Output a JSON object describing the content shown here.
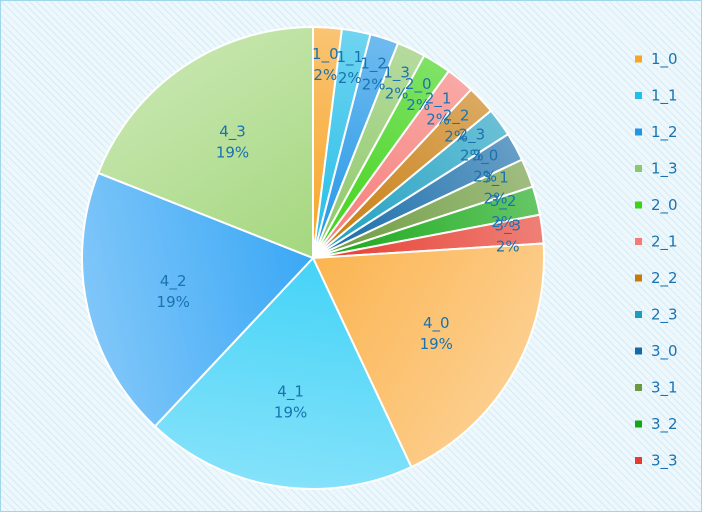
{
  "chart_data": {
    "type": "pie",
    "legend_position": "right",
    "slices": [
      {
        "label": "1_0",
        "value": 2,
        "percent_label": "2%",
        "color": "#f8a427"
      },
      {
        "label": "1_1",
        "value": 2,
        "percent_label": "2%",
        "color": "#22bde8"
      },
      {
        "label": "1_2",
        "value": 2,
        "percent_label": "2%",
        "color": "#2196e6"
      },
      {
        "label": "1_3",
        "value": 2,
        "percent_label": "2%",
        "color": "#8dc868"
      },
      {
        "label": "2_0",
        "value": 2,
        "percent_label": "2%",
        "color": "#3bd314"
      },
      {
        "label": "2_1",
        "value": 2,
        "percent_label": "2%",
        "color": "#f57a76"
      },
      {
        "label": "2_2",
        "value": 2,
        "percent_label": "2%",
        "color": "#c77a0c"
      },
      {
        "label": "2_3",
        "value": 2,
        "percent_label": "2%",
        "color": "#1a9ec0"
      },
      {
        "label": "3_0",
        "value": 2,
        "percent_label": "2%",
        "color": "#1469a8"
      },
      {
        "label": "3_1",
        "value": 2,
        "percent_label": "2%",
        "color": "#6b9a3c"
      },
      {
        "label": "3_2",
        "value": 2,
        "percent_label": "2%",
        "color": "#14a714"
      },
      {
        "label": "3_3",
        "value": 2,
        "percent_label": "2%",
        "color": "#e63b2e"
      },
      {
        "label": "4_0",
        "value": 19,
        "percent_label": "19%",
        "color": "#fbb450"
      },
      {
        "label": "4_1",
        "value": 19,
        "percent_label": "19%",
        "color": "#44d3f7"
      },
      {
        "label": "4_2",
        "value": 19,
        "percent_label": "19%",
        "color": "#3aa8f5"
      },
      {
        "label": "4_3",
        "value": 19,
        "percent_label": "19%",
        "color": "#a4d77e"
      }
    ],
    "legend": [
      "1_0",
      "1_1",
      "1_2",
      "1_3",
      "2_0",
      "2_1",
      "2_2",
      "2_3",
      "3_0",
      "3_1",
      "3_2",
      "3_3"
    ]
  }
}
